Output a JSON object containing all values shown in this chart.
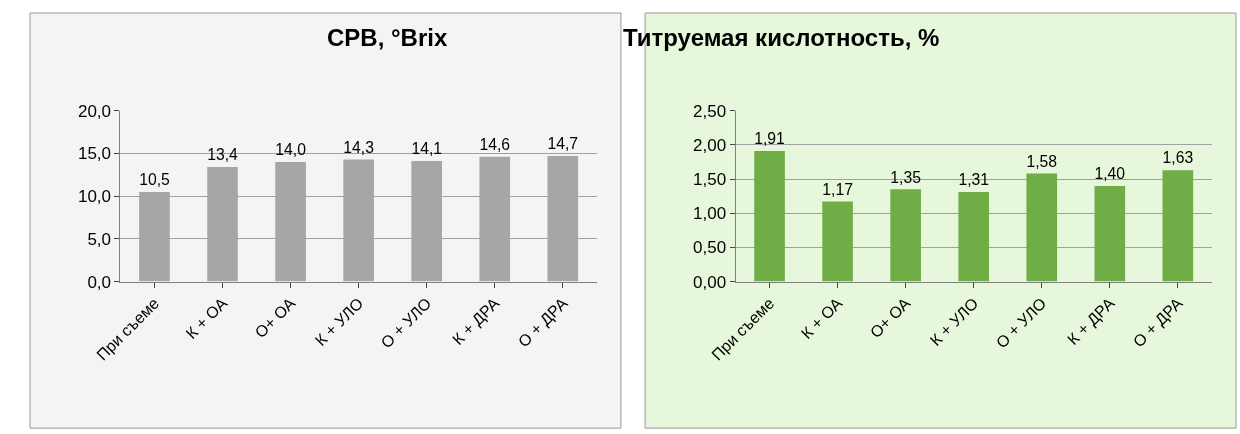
{
  "chart_data": [
    {
      "type": "bar",
      "title": "СРВ, °Brix",
      "categories": [
        "При съеме",
        "К + ОА",
        "О+ ОА",
        "К + УЛО",
        "О + УЛО",
        "К + ДРА",
        "О + ДРА"
      ],
      "values": [
        10.5,
        13.4,
        14.0,
        14.3,
        14.1,
        14.6,
        14.7
      ],
      "value_labels": [
        "10,5",
        "13,4",
        "14,0",
        "14,3",
        "14,1",
        "14,6",
        "14,7"
      ],
      "color": "#a6a6a6",
      "ylim": [
        0,
        20
      ],
      "yticks": [
        {
          "value": 0,
          "label": "0,0"
        },
        {
          "value": 5,
          "label": "5,0"
        },
        {
          "value": 10,
          "label": "10,0"
        },
        {
          "value": 15,
          "label": "15,0"
        },
        {
          "value": 20,
          "label": "20,0"
        }
      ],
      "grid": "y"
    },
    {
      "type": "bar",
      "title": "Титруемая кислотность, %",
      "categories": [
        "При съеме",
        "К + ОА",
        "О+ ОА",
        "К + УЛО",
        "О + УЛО",
        "К + ДРА",
        "О + ДРА"
      ],
      "values": [
        1.91,
        1.17,
        1.35,
        1.31,
        1.58,
        1.4,
        1.63
      ],
      "value_labels": [
        "1,91",
        "1,17",
        "1,35",
        "1,31",
        "1,58",
        "1,40",
        "1,63"
      ],
      "color": "#70ad47",
      "ylim": [
        0,
        2.5
      ],
      "yticks": [
        {
          "value": 0,
          "label": "0,00"
        },
        {
          "value": 0.5,
          "label": "0,50"
        },
        {
          "value": 1,
          "label": "1,00"
        },
        {
          "value": 1.5,
          "label": "1,50"
        },
        {
          "value": 2,
          "label": "2,00"
        },
        {
          "value": 2.5,
          "label": "2,50"
        }
      ],
      "grid": "y"
    }
  ]
}
